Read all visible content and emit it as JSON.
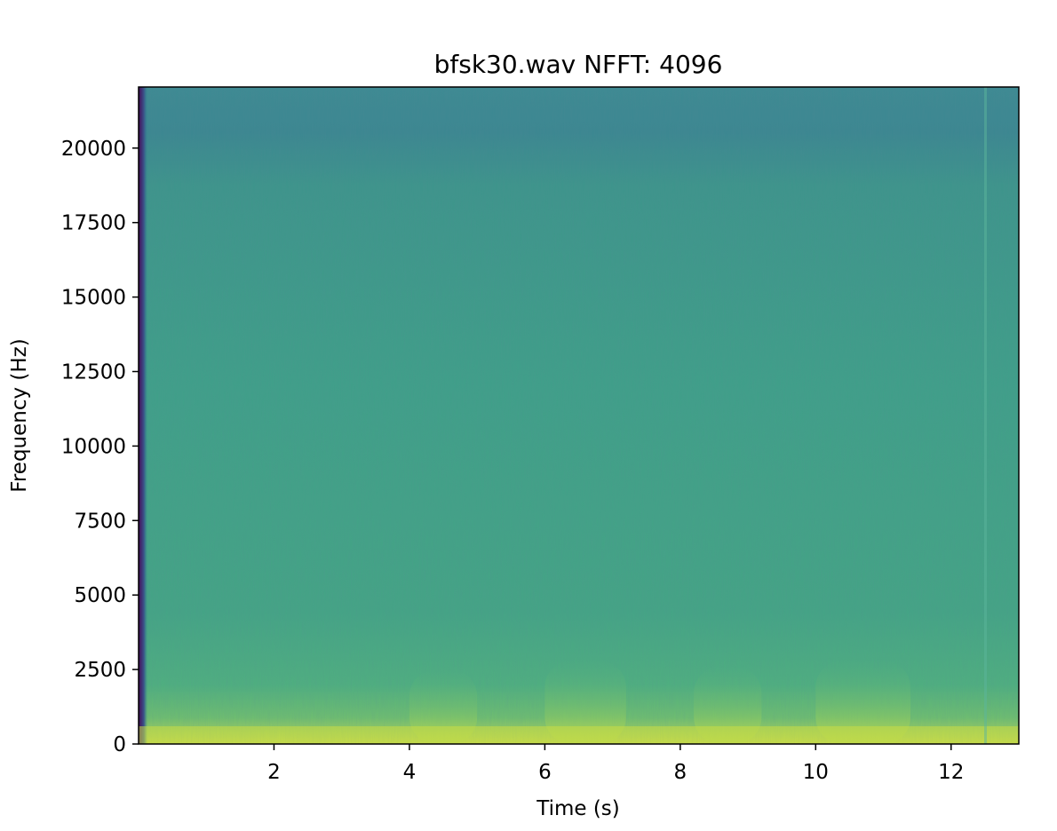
{
  "chart_data": {
    "type": "heatmap",
    "title": "bfsk30.wav  NFFT: 4096",
    "xlabel": "Time (s)",
    "ylabel": "Frequency (Hz)",
    "xlim": [
      0,
      13.0
    ],
    "ylim": [
      0,
      22050
    ],
    "x_ticks": [
      2,
      4,
      6,
      8,
      10,
      12
    ],
    "y_ticks": [
      0,
      2500,
      5000,
      7500,
      10000,
      12500,
      15000,
      17500,
      20000
    ],
    "x_tick_labels": [
      "2",
      "4",
      "6",
      "8",
      "10",
      "12"
    ],
    "y_tick_labels": [
      "0",
      "2500",
      "5000",
      "7500",
      "10000",
      "12500",
      "15000",
      "17500",
      "20000"
    ],
    "colormap": "viridis",
    "grid": false,
    "colors": {
      "high": "#c2d94a",
      "mid": "#3fa78a",
      "low": "#3c8390",
      "edge": "#440b54"
    },
    "energy_bursts": [
      {
        "t_start": 4.0,
        "t_end": 5.0,
        "f_max": 2500
      },
      {
        "t_start": 6.0,
        "t_end": 7.2,
        "f_max": 2800
      },
      {
        "t_start": 8.2,
        "t_end": 9.2,
        "f_max": 2600
      },
      {
        "t_start": 10.0,
        "t_end": 11.4,
        "f_max": 2800
      }
    ]
  }
}
